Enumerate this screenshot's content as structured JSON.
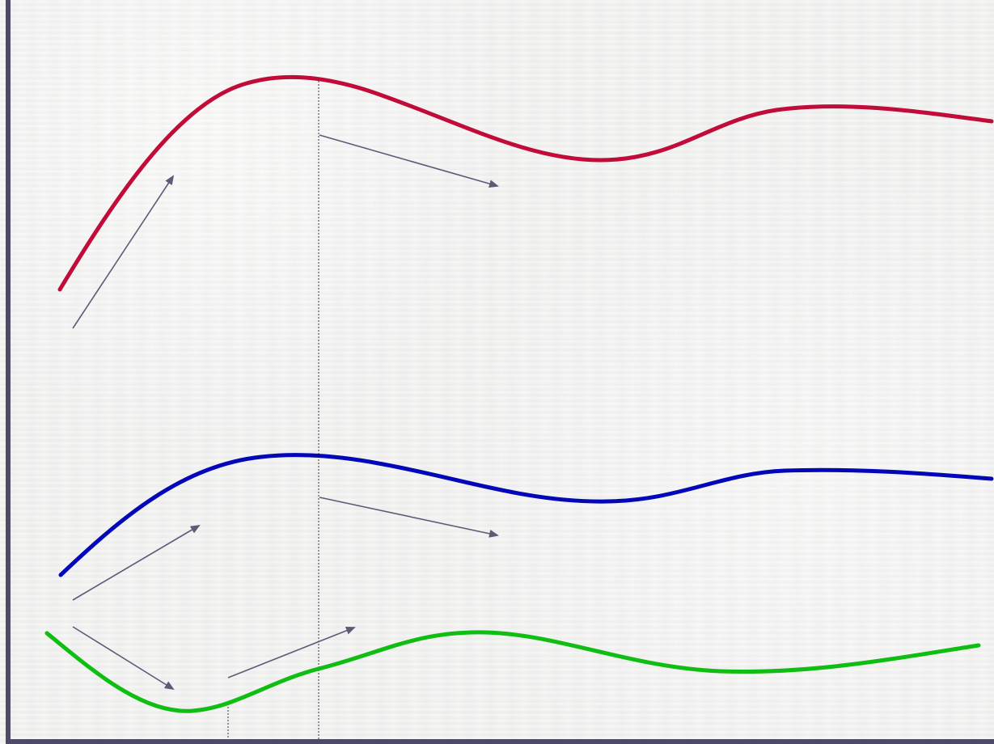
{
  "diagram": {
    "style": {
      "axis_color": "#4d4a67",
      "red_curve_color": "#c10b38",
      "blue_curve_color": "#0407b8",
      "green_curve_color": "#10bd12",
      "arrow_color": "#5d5b78",
      "guide_line_color": "#555566"
    },
    "icons": {
      "arrow_icon": "triangle-arrowhead"
    }
  }
}
